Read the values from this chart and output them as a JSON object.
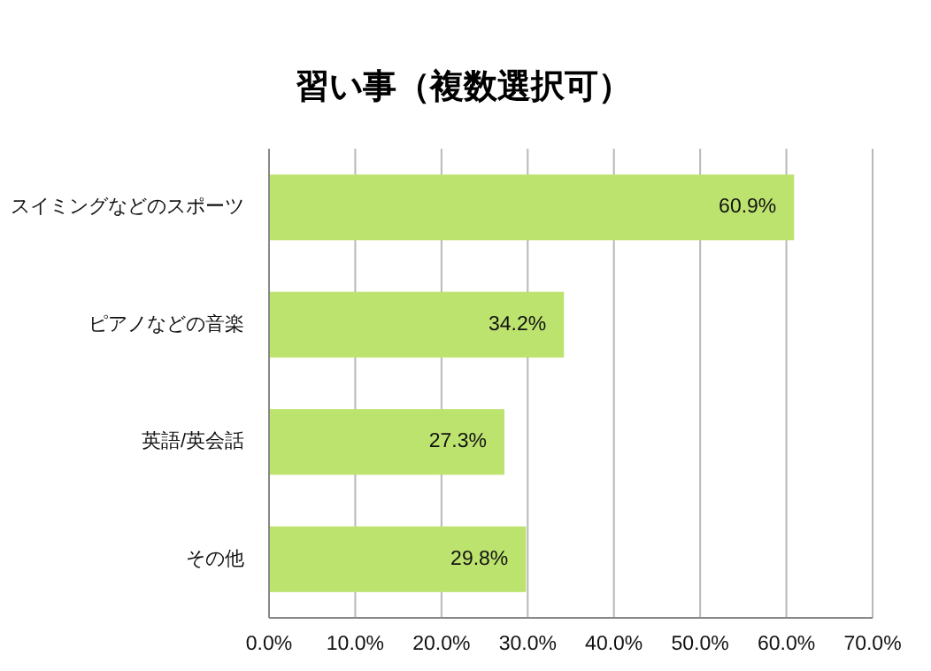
{
  "chart_data": {
    "type": "bar",
    "orientation": "horizontal",
    "title": "習い事（複数選択可）",
    "categories": [
      "スイミングなどのスポーツ",
      "ピアノなどの音楽",
      "英語/英会話",
      "その他"
    ],
    "values": [
      60.9,
      34.2,
      27.3,
      29.8
    ],
    "color": "#bde36f",
    "value_labels": [
      "60.9%",
      "34.2%",
      "27.3%",
      "29.8%"
    ],
    "xlim": [
      0,
      70
    ],
    "xticks": [
      {
        "value": 0,
        "label": "0.0%"
      },
      {
        "value": 10,
        "label": "10.0%"
      },
      {
        "value": 20,
        "label": "20.0%"
      },
      {
        "value": 30,
        "label": "30.0%"
      },
      {
        "value": 40,
        "label": "40.0%"
      },
      {
        "value": 50,
        "label": "50.0%"
      },
      {
        "value": 60,
        "label": "60.0%"
      },
      {
        "value": 70,
        "label": "70.0%"
      }
    ],
    "grid": "x"
  }
}
